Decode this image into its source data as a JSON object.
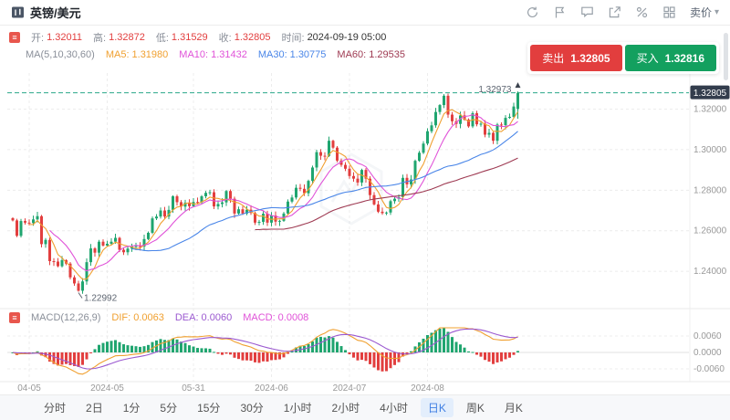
{
  "header": {
    "title": "英镑/美元",
    "price_type": "卖价",
    "caret_glyph": "▾",
    "icons": [
      "refresh-icon",
      "flag-icon",
      "comment-icon",
      "share-icon",
      "percent-icon",
      "grid-icon",
      "caret-down-icon"
    ]
  },
  "ohlc": {
    "open_label": "开:",
    "open": "1.32011",
    "high_label": "高:",
    "high": "1.32872",
    "low_label": "低:",
    "low": "1.31529",
    "close_label": "收:",
    "close": "1.32805",
    "time_label": "时间:",
    "time": "2024-09-19 05:00"
  },
  "ma": {
    "group": "MA(5,10,30,60)",
    "ma5_label": "MA5:",
    "ma5": "1.31980",
    "ma10_label": "MA10:",
    "ma10": "1.31432",
    "ma30_label": "MA30:",
    "ma30": "1.30775",
    "ma60_label": "MA60:",
    "ma60": "1.29535"
  },
  "trade": {
    "sell_label": "卖出",
    "sell_price": "1.32805",
    "buy_label": "买入",
    "buy_price": "1.32816"
  },
  "price_axis": {
    "labels": [
      "1.32000",
      "1.30000",
      "1.28000",
      "1.26000",
      "1.24000"
    ],
    "values": [
      1.32,
      1.3,
      1.28,
      1.26,
      1.24
    ],
    "current": "1.32805",
    "current_value": 1.32805
  },
  "annotations": {
    "high_label": "1.32973",
    "high_value": 1.32973,
    "low_label": "1.22992",
    "low_value": 1.22992
  },
  "macd": {
    "title": "MACD(12,26,9)",
    "dif_label": "DIF:",
    "dif": "0.0063",
    "dea_label": "DEA:",
    "dea": "0.0060",
    "macd_label": "MACD:",
    "macd": "0.0008",
    "axis_labels": [
      "0.0060",
      "0.0000",
      "-0.0060"
    ],
    "axis_values": [
      0.006,
      0,
      -0.006
    ]
  },
  "x_axis": {
    "ticks": [
      {
        "label": "04-05",
        "index": 4
      },
      {
        "label": "2024-05",
        "index": 23
      },
      {
        "label": "05-31",
        "index": 44
      },
      {
        "label": "2024-06",
        "index": 63
      },
      {
        "label": "2024-07",
        "index": 82
      },
      {
        "label": "2024-08",
        "index": 101
      }
    ]
  },
  "toolbar": {
    "items": [
      {
        "label": "分时",
        "active": false
      },
      {
        "label": "2日",
        "active": false
      },
      {
        "label": "1分",
        "active": false
      },
      {
        "label": "5分",
        "active": false
      },
      {
        "label": "15分",
        "active": false
      },
      {
        "label": "30分",
        "active": false
      },
      {
        "label": "1小时",
        "active": false
      },
      {
        "label": "2小时",
        "active": false
      },
      {
        "label": "4小时",
        "active": false
      },
      {
        "label": "日K",
        "active": true
      },
      {
        "label": "周K",
        "active": false
      },
      {
        "label": "月K",
        "active": false
      }
    ]
  },
  "colors": {
    "up": "#1fa56f",
    "down": "#e23e3e",
    "ma5": "#f0a030",
    "ma10": "#e052d8",
    "ma30": "#4a86e8",
    "ma60": "#9e3a52",
    "dif": "#f0a030",
    "dea": "#9b59d0",
    "grid": "#ececec",
    "axis_text": "#999999",
    "current_line": "#2aa88a",
    "badge_bg": "#333d4d",
    "badge_text": "#ffffff",
    "annotation": "#5c6470"
  },
  "chart_data": {
    "type": "candlestick+macd",
    "title": "英镑/美元 日K",
    "interval": "日K",
    "price_range": [
      1.227,
      1.336
    ],
    "first_open": 1.2662,
    "lowest_index": 16,
    "lowest": 1.22992,
    "last_candle": [
      1.32011,
      1.32872,
      1.31529,
      1.32805
    ],
    "ma_windows": [
      5,
      10,
      30,
      60
    ],
    "macd_params": [
      12,
      26,
      9
    ],
    "closes": [
      1.2651,
      1.2575,
      1.2648,
      1.264,
      1.2638,
      1.2656,
      1.2672,
      1.2534,
      1.2555,
      1.245,
      1.2448,
      1.2425,
      1.2455,
      1.2438,
      1.237,
      1.234,
      1.2304,
      1.235,
      1.2445,
      1.2513,
      1.2492,
      1.2546,
      1.2527,
      1.2536,
      1.2546,
      1.2565,
      1.2506,
      1.2494,
      1.2512,
      1.2523,
      1.2525,
      1.2522,
      1.2559,
      1.259,
      1.2661,
      1.267,
      1.27,
      1.267,
      1.2703,
      1.277,
      1.2741,
      1.2719,
      1.2739,
      1.2721,
      1.2742,
      1.274,
      1.277,
      1.2787,
      1.279,
      1.272,
      1.2732,
      1.274,
      1.2796,
      1.2758,
      1.2685,
      1.2706,
      1.2685,
      1.2704,
      1.2688,
      1.264,
      1.2644,
      1.2684,
      1.264,
      1.2675,
      1.2645,
      1.2649,
      1.2685,
      1.2744,
      1.2764,
      1.2812,
      1.2807,
      1.2785,
      1.2846,
      1.2912,
      1.2988,
      1.297,
      1.2969,
      1.3044,
      1.301,
      1.2946,
      1.2925,
      1.2906,
      1.287,
      1.2857,
      1.2838,
      1.29,
      1.2857,
      1.2776,
      1.273,
      1.2694,
      1.2687,
      1.269,
      1.2746,
      1.2758,
      1.2766,
      1.2861,
      1.2829,
      1.2853,
      1.2945,
      1.2985,
      1.303,
      1.3091,
      1.312,
      1.3186,
      1.322,
      1.3266,
      1.3173,
      1.314,
      1.3127,
      1.3169,
      1.3148,
      1.3115,
      1.318,
      1.3125,
      1.3128,
      1.3074,
      1.3083,
      1.3044,
      1.3124,
      1.3121,
      1.3157,
      1.3162,
      1.3213,
      1.32805
    ]
  }
}
